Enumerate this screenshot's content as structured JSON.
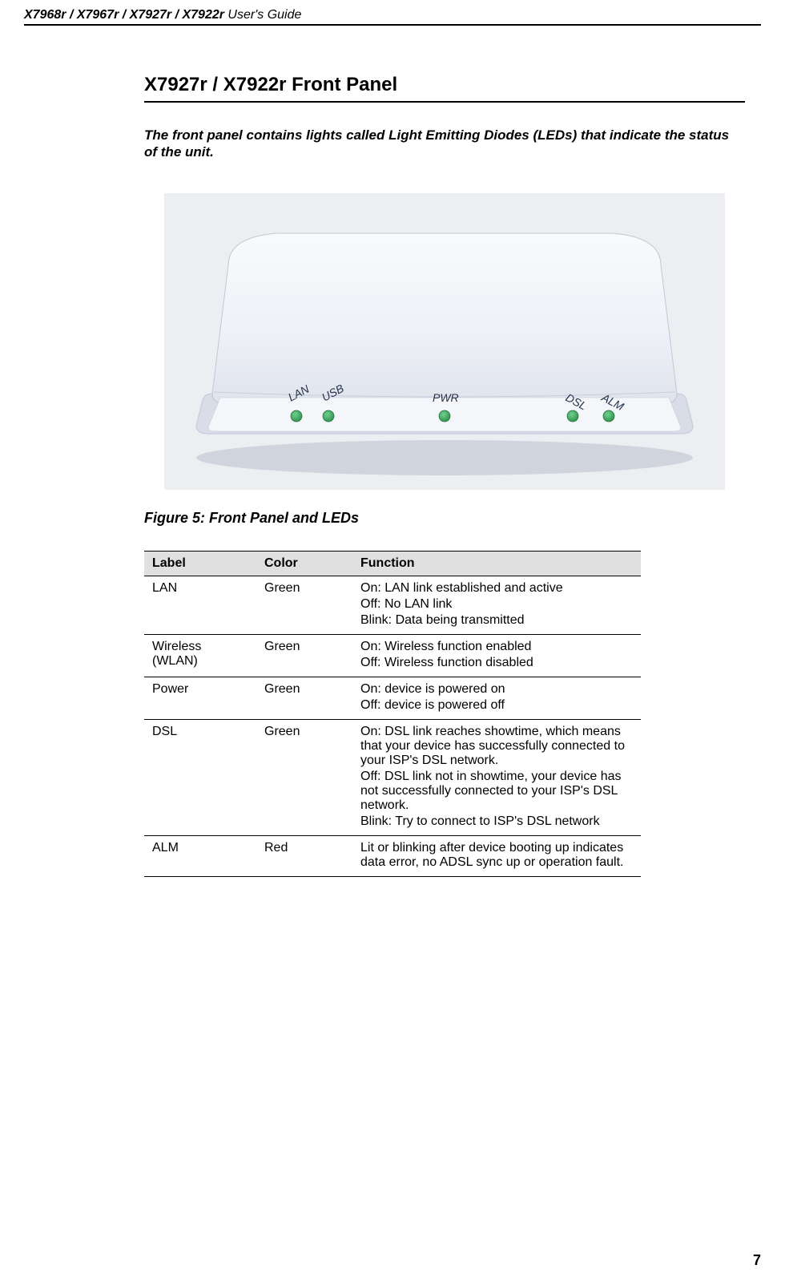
{
  "header": {
    "models": "X7968r / X7967r / X7927r / X7922r",
    "suffix": " User's Guide"
  },
  "section_title": "X7927r / X7922r Front Panel",
  "intro_text": "The front panel contains lights called Light Emitting Diodes (LEDs) that indicate the status of the unit.",
  "figure_caption": "Figure 5: Front Panel and LEDs",
  "device": {
    "labels": {
      "lan": "LAN",
      "usb": "USB",
      "pwr": "PWR",
      "dsl": "DSL",
      "alm": "ALM"
    },
    "body_color_light": "#f5f7fb",
    "body_color_shadow": "#d8dde8",
    "body_stroke": "#c1c7d4",
    "led_green": "#2f8f4e",
    "led_green_light": "#4db36b",
    "label_color": "#24344d",
    "background": "#eceef2"
  },
  "table": {
    "headers": {
      "label": "Label",
      "color": "Color",
      "function": "Function"
    },
    "rows": [
      {
        "label": "LAN",
        "color": "Green",
        "function": [
          "On: LAN link established and active",
          "Off: No LAN link",
          "Blink: Data being transmitted"
        ]
      },
      {
        "label": "Wireless (WLAN)",
        "color": "Green",
        "function": [
          "On: Wireless function enabled",
          "Off: Wireless function disabled"
        ]
      },
      {
        "label": "Power",
        "color": "Green",
        "function": [
          "On: device is powered on",
          "Off: device is powered off"
        ]
      },
      {
        "label": "DSL",
        "color": "Green",
        "function": [
          "On: DSL link reaches showtime, which means that your device has successfully connected to your ISP's DSL network.",
          "Off: DSL link not in showtime, your device has not successfully connected to your ISP's DSL network.",
          "Blink: Try to connect to ISP's DSL network"
        ]
      },
      {
        "label": "ALM",
        "color": "Red",
        "function": [
          "Lit or blinking after device booting up indicates data error, no ADSL sync up or operation fault."
        ]
      }
    ]
  },
  "page_number": "7"
}
